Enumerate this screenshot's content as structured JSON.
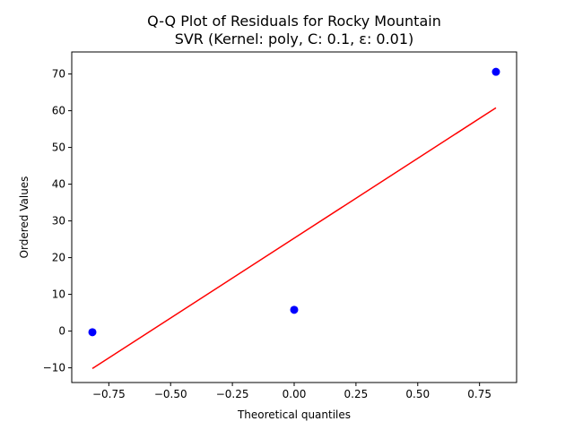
{
  "chart_data": {
    "type": "scatter",
    "title": "Q-Q Plot of Residuals for Rocky Mountain",
    "subtitle": "SVR (Kernel: poly, C: 0.1, ε: 0.01)",
    "xlabel": "Theoretical quantiles",
    "ylabel": "Ordered Values",
    "xlim": [
      -0.9,
      0.9
    ],
    "ylim": [
      -14,
      76
    ],
    "x_ticks": [
      -0.75,
      -0.5,
      -0.25,
      0.0,
      0.25,
      0.5,
      0.75
    ],
    "x_tick_labels": [
      "−0.75",
      "−0.50",
      "−0.25",
      "0.00",
      "0.25",
      "0.50",
      "0.75"
    ],
    "y_ticks": [
      -10,
      0,
      10,
      20,
      30,
      40,
      50,
      60,
      70
    ],
    "y_tick_labels": [
      "−10",
      "0",
      "10",
      "20",
      "30",
      "40",
      "50",
      "60",
      "70"
    ],
    "grid": false,
    "points": {
      "x": [
        -0.8165,
        0.0,
        0.8165
      ],
      "y": [
        -0.3,
        5.8,
        70.6
      ],
      "color": "#0000ff"
    },
    "fit_line": {
      "x": [
        -0.8165,
        0.8165
      ],
      "y": [
        -10.2,
        60.8
      ],
      "color": "#ff0000"
    }
  }
}
